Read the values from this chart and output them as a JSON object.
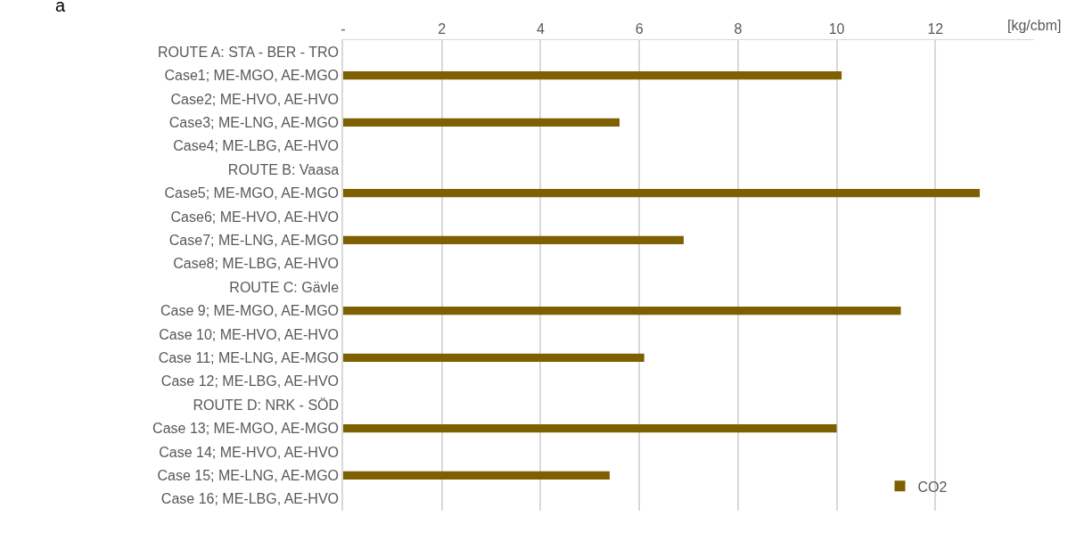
{
  "chart_data": {
    "type": "bar",
    "orientation": "horizontal",
    "xlabel": "[kg/cbm]",
    "annotations": [
      "a"
    ],
    "categories": [
      "ROUTE A: STA - BER - TRO",
      "Case1; ME-MGO, AE-MGO",
      "Case2; ME-HVO, AE-HVO",
      "Case3; ME-LNG, AE-MGO",
      "Case4; ME-LBG, AE-HVO",
      "ROUTE B: Vaasa",
      "Case5; ME-MGO, AE-MGO",
      "Case6; ME-HVO, AE-HVO",
      "Case7; ME-LNG, AE-MGO",
      "Case8; ME-LBG, AE-HVO",
      "ROUTE C: Gävle",
      "Case 9; ME-MGO, AE-MGO",
      "Case 10; ME-HVO, AE-HVO",
      "Case 11; ME-LNG, AE-MGO",
      "Case 12; ME-LBG, AE-HVO",
      "ROUTE D: NRK - SÖD",
      "Case 13; ME-MGO, AE-MGO",
      "Case 14; ME-HVO, AE-HVO",
      "Case 15; ME-LNG, AE-MGO",
      "Case 16; ME-LBG, AE-HVO"
    ],
    "series": [
      {
        "name": "CO2",
        "color": "#7f6000",
        "values": [
          null,
          10.1,
          null,
          5.6,
          null,
          null,
          12.9,
          null,
          6.9,
          null,
          null,
          11.3,
          null,
          6.1,
          null,
          null,
          10.0,
          null,
          5.4,
          null
        ]
      }
    ],
    "xlim": [
      0,
      14
    ],
    "xticks": [
      {
        "value": 0,
        "label": "-"
      },
      2,
      4,
      6,
      8,
      10,
      12
    ],
    "grid": "x",
    "legend": "bottom right"
  }
}
